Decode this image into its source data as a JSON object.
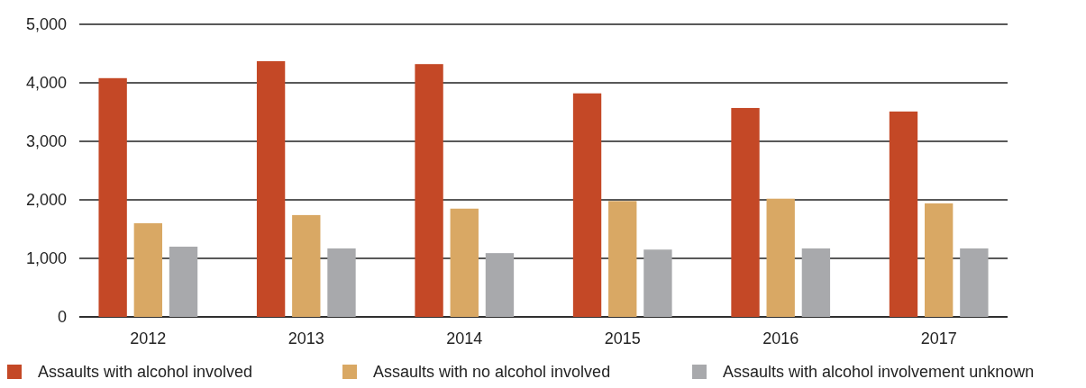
{
  "chart_data": {
    "type": "bar",
    "categories": [
      "2012",
      "2013",
      "2014",
      "2015",
      "2016",
      "2017"
    ],
    "series": [
      {
        "name": "Assaults with alcohol involved",
        "color": "#c44826",
        "values": [
          4080,
          4370,
          4320,
          3820,
          3570,
          3510
        ]
      },
      {
        "name": "Assaults with no alcohol involved",
        "color": "#d9a864",
        "values": [
          1600,
          1740,
          1850,
          1980,
          2020,
          1940
        ]
      },
      {
        "name": "Assaults with alcohol involvement unknown",
        "color": "#a8a9ac",
        "values": [
          1200,
          1170,
          1090,
          1150,
          1170,
          1170
        ]
      }
    ],
    "ylim": [
      0,
      5000
    ],
    "yticks": [
      {
        "value": 0,
        "label": "0"
      },
      {
        "value": 1000,
        "label": "1,000"
      },
      {
        "value": 2000,
        "label": "2,000"
      },
      {
        "value": 3000,
        "label": "3,000"
      },
      {
        "value": 4000,
        "label": "4,000"
      },
      {
        "value": 5000,
        "label": "5,000"
      }
    ],
    "grid": "y",
    "legend": "bottom"
  }
}
